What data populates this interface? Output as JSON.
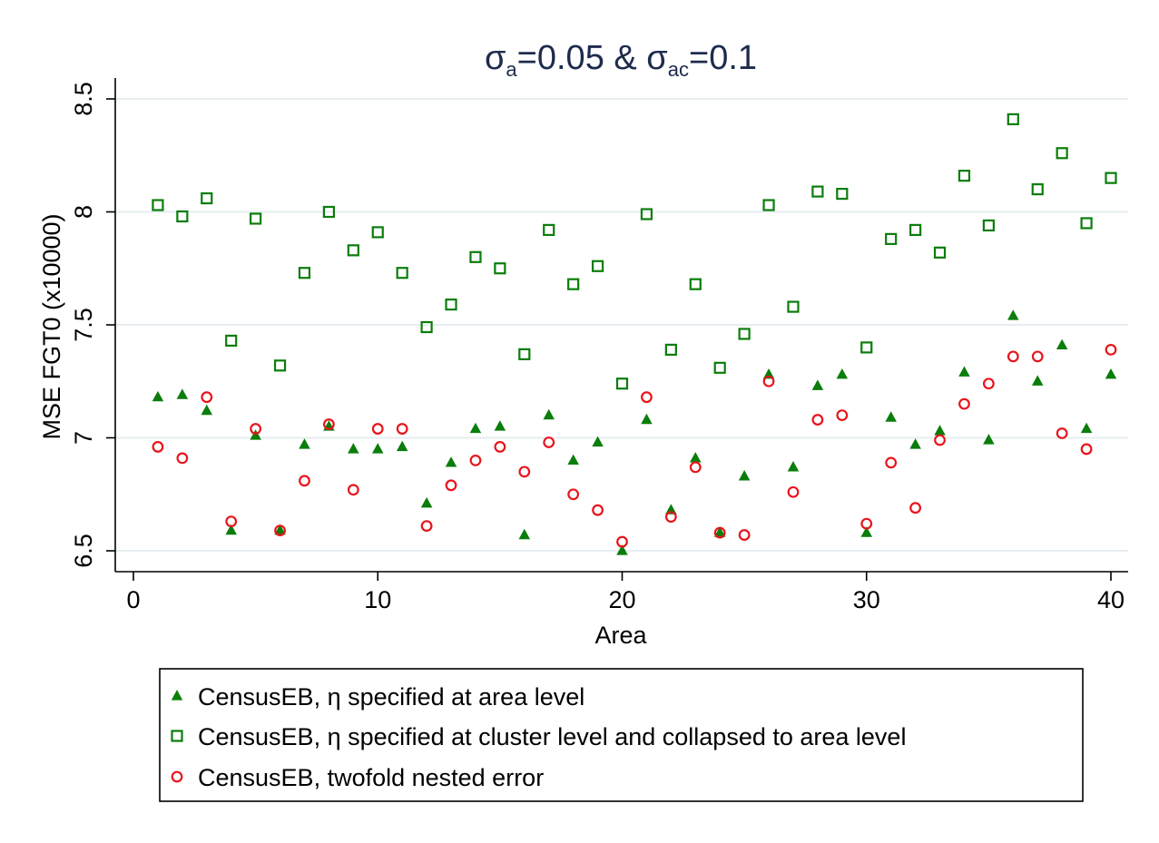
{
  "chart_data": {
    "type": "scatter",
    "title": {
      "sigma": "σ",
      "sub1": "a",
      "mid": "=0.05 & ",
      "sigma2": "σ",
      "sub2": "ac",
      "end": "=0.1"
    },
    "xlabel": "Area",
    "ylabel": "MSE FGT0 (x10000)",
    "xlim": [
      -0.8,
      40.8
    ],
    "ylim": [
      6.45,
      8.6
    ],
    "xticks": [
      0,
      10,
      20,
      30,
      40
    ],
    "yticks": [
      6.5,
      7,
      7.5,
      8,
      8.5
    ],
    "ytick_labels": [
      "6.5",
      "7",
      "7.5",
      "8",
      "8.5"
    ],
    "grid": "horizontal",
    "legend_position": "bottom",
    "x": [
      1,
      2,
      3,
      4,
      5,
      6,
      7,
      8,
      9,
      10,
      11,
      12,
      13,
      14,
      15,
      16,
      17,
      18,
      19,
      20,
      21,
      22,
      23,
      24,
      25,
      26,
      27,
      28,
      29,
      30,
      31,
      32,
      33,
      34,
      35,
      36,
      37,
      38,
      39,
      40
    ],
    "series": [
      {
        "name": "CensusEB, η specified at area level",
        "marker": "triangle",
        "color": "#0a7d0a",
        "values": [
          7.18,
          7.19,
          7.12,
          6.59,
          7.01,
          6.59,
          6.97,
          7.05,
          6.95,
          6.95,
          6.96,
          6.71,
          6.89,
          7.04,
          7.05,
          6.57,
          7.1,
          6.9,
          6.98,
          6.5,
          7.08,
          6.68,
          6.91,
          6.58,
          6.83,
          7.28,
          6.87,
          7.23,
          7.28,
          6.58,
          7.09,
          6.97,
          7.03,
          7.29,
          6.99,
          7.54,
          7.25,
          7.41,
          7.04,
          7.28
        ]
      },
      {
        "name": "CensusEB, η specified at cluster level and collapsed to area level",
        "marker": "square",
        "color": "#0a7d0a",
        "values": [
          8.03,
          7.98,
          8.06,
          7.43,
          7.97,
          7.32,
          7.73,
          8.0,
          7.83,
          7.91,
          7.73,
          7.49,
          7.59,
          7.8,
          7.75,
          7.37,
          7.92,
          7.68,
          7.76,
          7.24,
          7.99,
          7.39,
          7.68,
          7.31,
          7.46,
          8.03,
          7.58,
          8.09,
          8.08,
          7.4,
          7.88,
          7.92,
          7.82,
          8.16,
          7.94,
          8.41,
          8.1,
          8.26,
          7.95,
          8.15
        ]
      },
      {
        "name": "CensusEB, twofold nested error",
        "marker": "circle",
        "color": "#e8141b",
        "values": [
          6.96,
          6.91,
          7.18,
          6.63,
          7.04,
          6.59,
          6.81,
          7.06,
          6.77,
          7.04,
          7.04,
          6.61,
          6.79,
          6.9,
          6.96,
          6.85,
          6.98,
          6.75,
          6.68,
          6.54,
          7.18,
          6.65,
          6.87,
          6.58,
          6.57,
          7.25,
          6.76,
          7.08,
          7.1,
          6.62,
          6.89,
          6.69,
          6.99,
          7.15,
          7.24,
          7.36,
          7.36,
          7.02,
          6.95,
          7.39
        ]
      }
    ]
  }
}
